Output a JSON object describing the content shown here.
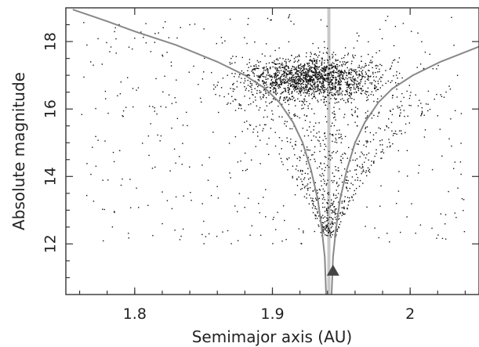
{
  "chart_data": {
    "type": "scatter",
    "title": "",
    "xlabel": "Semimajor axis (AU)",
    "ylabel": "Absolute magnitude",
    "xlim": [
      1.75,
      2.05
    ],
    "ylim": [
      10.5,
      19.0
    ],
    "x_ticks": [
      1.8,
      1.9,
      2.0
    ],
    "x_tick_labels": [
      "1.8",
      "1.9",
      "2"
    ],
    "y_ticks": [
      12,
      14,
      16,
      18
    ],
    "y_tick_labels": [
      "12",
      "14",
      "16",
      "18"
    ],
    "grid": false,
    "legend": "none",
    "vertical_line": {
      "x": 1.941,
      "color": "#c8c8c8"
    },
    "family_center_marker": {
      "x": 1.944,
      "y": 11.2,
      "shape": "triangle",
      "color": "#444444"
    },
    "v_shape_curves": {
      "color": "#888888",
      "center_x": 1.941,
      "left": [
        {
          "x": 1.755,
          "y": 18.95
        },
        {
          "x": 1.78,
          "y": 18.6
        },
        {
          "x": 1.8,
          "y": 18.3
        },
        {
          "x": 1.83,
          "y": 17.9
        },
        {
          "x": 1.86,
          "y": 17.4
        },
        {
          "x": 1.88,
          "y": 17.0
        },
        {
          "x": 1.895,
          "y": 16.6
        },
        {
          "x": 1.905,
          "y": 16.2
        },
        {
          "x": 1.915,
          "y": 15.6
        },
        {
          "x": 1.922,
          "y": 15.0
        },
        {
          "x": 1.928,
          "y": 14.2
        },
        {
          "x": 1.933,
          "y": 13.3
        },
        {
          "x": 1.936,
          "y": 12.4
        },
        {
          "x": 1.938,
          "y": 11.6
        },
        {
          "x": 1.939,
          "y": 10.5
        }
      ],
      "right": [
        {
          "x": 1.943,
          "y": 10.5
        },
        {
          "x": 1.944,
          "y": 11.6
        },
        {
          "x": 1.946,
          "y": 12.4
        },
        {
          "x": 1.949,
          "y": 13.3
        },
        {
          "x": 1.954,
          "y": 14.2
        },
        {
          "x": 1.96,
          "y": 15.0
        },
        {
          "x": 1.967,
          "y": 15.6
        },
        {
          "x": 1.977,
          "y": 16.2
        },
        {
          "x": 1.987,
          "y": 16.6
        },
        {
          "x": 2.002,
          "y": 17.0
        },
        {
          "x": 2.022,
          "y": 17.4
        },
        {
          "x": 2.05,
          "y": 17.85
        }
      ]
    },
    "scatter_points": {
      "color": "#111111",
      "approx_count": 2600,
      "sampled": [
        [
          1.77,
          17.3
        ],
        [
          1.79,
          16.8
        ],
        [
          1.8,
          18.1
        ],
        [
          1.81,
          15.2
        ],
        [
          1.82,
          17.6
        ],
        [
          1.83,
          16.2
        ],
        [
          1.84,
          18.5
        ],
        [
          1.85,
          17.1
        ],
        [
          1.86,
          16.7
        ],
        [
          1.87,
          17.5
        ],
        [
          1.88,
          16.9
        ],
        [
          1.89,
          17.2
        ],
        [
          1.9,
          16.8
        ],
        [
          1.91,
          17.4
        ],
        [
          1.92,
          16.6
        ],
        [
          1.93,
          17.0
        ],
        [
          1.94,
          16.5
        ],
        [
          1.95,
          17.1
        ],
        [
          1.96,
          16.9
        ],
        [
          1.97,
          17.3
        ],
        [
          1.98,
          16.7
        ],
        [
          1.99,
          17.0
        ],
        [
          2.0,
          16.4
        ],
        [
          2.01,
          17.2
        ],
        [
          2.02,
          15.8
        ],
        [
          2.03,
          14.9
        ],
        [
          1.93,
          15.2
        ],
        [
          1.935,
          14.4
        ],
        [
          1.94,
          13.5
        ],
        [
          1.945,
          14.0
        ],
        [
          1.95,
          15.0
        ],
        [
          1.925,
          15.8
        ],
        [
          1.96,
          15.9
        ],
        [
          1.86,
          13.7
        ],
        [
          1.82,
          12.6
        ],
        [
          1.99,
          13.2
        ]
      ]
    }
  }
}
